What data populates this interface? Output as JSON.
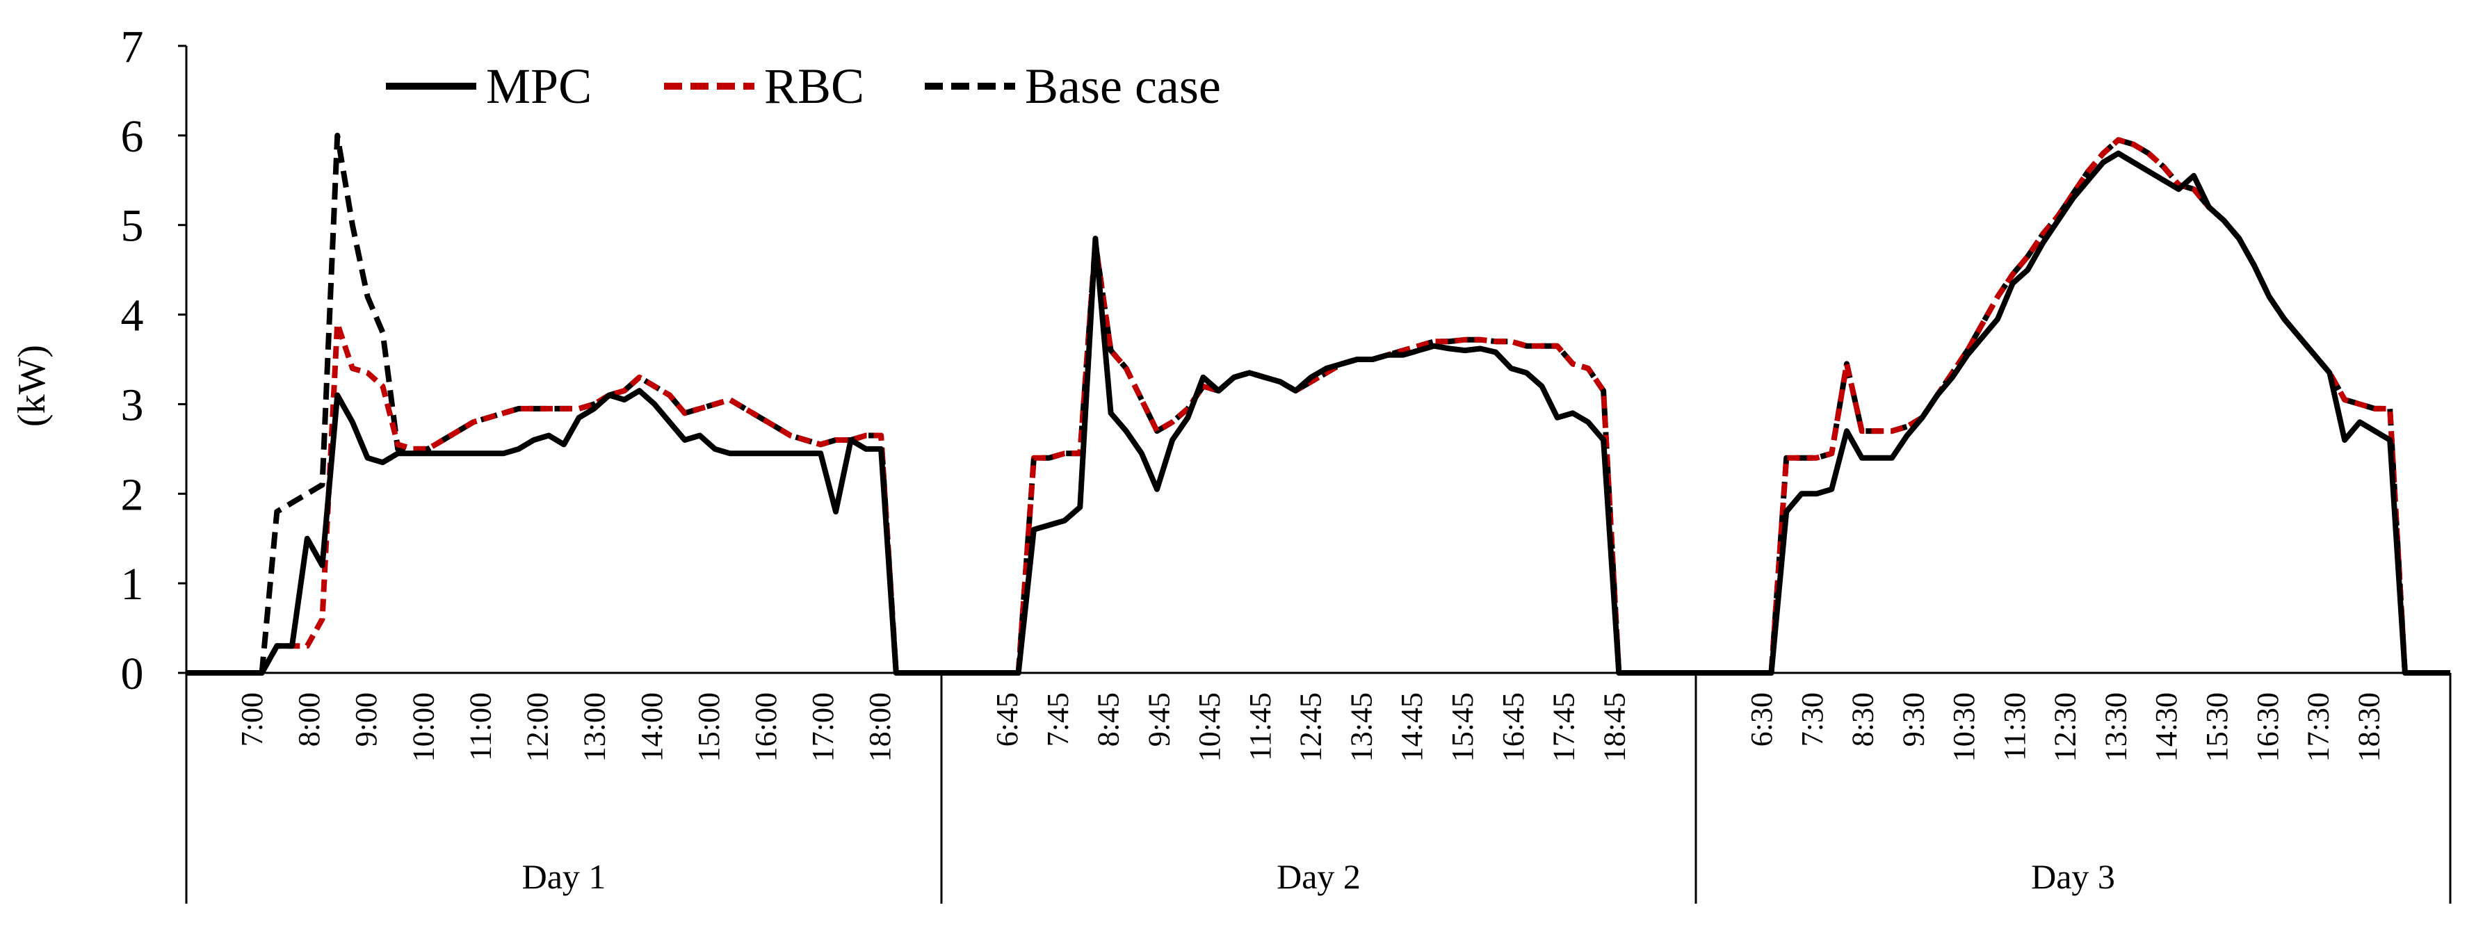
{
  "chart_data": {
    "type": "line",
    "title": "",
    "xlabel": "",
    "ylabel": "(kW)",
    "ylim": [
      0,
      7
    ],
    "yticks": [
      0,
      1,
      2,
      3,
      4,
      5,
      6,
      7
    ],
    "grid": false,
    "legend_position": "top-left",
    "groups": [
      {
        "label": "Day 1",
        "ticks": [
          "7:00",
          "8:00",
          "9:00",
          "10:00",
          "11:00",
          "12:00",
          "13:00",
          "14:00",
          "15:00",
          "16:00",
          "17:00",
          "18:00"
        ]
      },
      {
        "label": "Day 2",
        "ticks": [
          "6:45",
          "7:45",
          "8:45",
          "9:45",
          "10:45",
          "11:45",
          "12:45",
          "13:45",
          "14:45",
          "15:45",
          "16:45",
          "17:45",
          "18:45"
        ]
      },
      {
        "label": "Day 3",
        "ticks": [
          "6:30",
          "7:30",
          "8:30",
          "9:30",
          "10:30",
          "11:30",
          "12:30",
          "13:30",
          "14:30",
          "15:30",
          "16:30",
          "17:30",
          "18:30"
        ]
      }
    ],
    "series": [
      {
        "name": "MPC",
        "color": "#000000",
        "style": "solid",
        "days": [
          [
            0,
            0,
            0,
            0,
            0,
            0,
            0.3,
            0.3,
            1.5,
            1.2,
            3.1,
            2.8,
            2.4,
            2.35,
            2.45,
            2.45,
            2.45,
            2.45,
            2.45,
            2.45,
            2.45,
            2.45,
            2.5,
            2.6,
            2.65,
            2.55,
            2.85,
            2.95,
            3.1,
            3.05,
            3.15,
            3.0,
            2.8,
            2.6,
            2.65,
            2.5,
            2.45,
            2.45,
            2.45,
            2.45,
            2.45,
            2.45,
            2.45,
            1.8,
            2.6,
            2.5,
            2.5,
            0,
            0,
            0,
            0
          ],
          [
            0,
            0,
            0,
            0,
            0,
            0,
            1.6,
            1.65,
            1.7,
            1.85,
            4.85,
            2.9,
            2.7,
            2.45,
            2.05,
            2.6,
            2.85,
            3.3,
            3.15,
            3.3,
            3.35,
            3.3,
            3.25,
            3.15,
            3.3,
            3.4,
            3.45,
            3.5,
            3.5,
            3.55,
            3.55,
            3.6,
            3.65,
            3.62,
            3.6,
            3.62,
            3.58,
            3.4,
            3.35,
            3.2,
            2.85,
            2.9,
            2.8,
            2.6,
            0,
            0,
            0,
            0,
            0,
            0
          ],
          [
            0,
            0,
            0,
            0,
            0,
            0,
            1.8,
            2.0,
            2.0,
            2.05,
            2.7,
            2.4,
            2.4,
            2.4,
            2.65,
            2.85,
            3.1,
            3.3,
            3.55,
            3.75,
            3.95,
            4.35,
            4.5,
            4.8,
            5.05,
            5.3,
            5.5,
            5.7,
            5.8,
            5.7,
            5.6,
            5.5,
            5.4,
            5.55,
            5.2,
            5.05,
            4.85,
            4.55,
            4.2,
            3.95,
            3.75,
            3.55,
            3.35,
            2.6,
            2.8,
            2.7,
            2.6,
            0,
            0,
            0,
            0
          ]
        ]
      },
      {
        "name": "RBC",
        "color": "#C00000",
        "style": "dashed",
        "days": [
          [
            0,
            0,
            0,
            0,
            0,
            0,
            0.3,
            0.3,
            0.3,
            0.6,
            3.9,
            3.4,
            3.35,
            3.2,
            2.55,
            2.5,
            2.5,
            2.6,
            2.7,
            2.8,
            2.85,
            2.9,
            2.95,
            2.95,
            2.95,
            2.95,
            2.95,
            3.0,
            3.1,
            3.15,
            3.3,
            3.2,
            3.1,
            2.9,
            2.95,
            3.0,
            3.05,
            2.95,
            2.85,
            2.75,
            2.65,
            2.6,
            2.55,
            2.6,
            2.6,
            2.65,
            2.65,
            0,
            0,
            0,
            0
          ],
          [
            0,
            0,
            0,
            0,
            0,
            0,
            2.4,
            2.4,
            2.45,
            2.45,
            4.8,
            3.6,
            3.4,
            3.05,
            2.7,
            2.8,
            2.95,
            3.2,
            3.15,
            3.3,
            3.35,
            3.3,
            3.25,
            3.15,
            3.25,
            3.35,
            3.45,
            3.5,
            3.5,
            3.55,
            3.6,
            3.65,
            3.7,
            3.7,
            3.72,
            3.72,
            3.7,
            3.7,
            3.65,
            3.65,
            3.65,
            3.45,
            3.4,
            3.15,
            0,
            0,
            0,
            0,
            0,
            0
          ],
          [
            0,
            0,
            0,
            0,
            0,
            0,
            2.4,
            2.4,
            2.4,
            2.45,
            3.45,
            2.7,
            2.7,
            2.7,
            2.75,
            2.85,
            3.1,
            3.35,
            3.6,
            3.9,
            4.2,
            4.45,
            4.65,
            4.9,
            5.1,
            5.35,
            5.6,
            5.8,
            5.95,
            5.9,
            5.8,
            5.65,
            5.45,
            5.4,
            5.2,
            5.05,
            4.85,
            4.55,
            4.2,
            3.95,
            3.75,
            3.55,
            3.35,
            3.05,
            3.0,
            2.95,
            2.95,
            0,
            0,
            0,
            0
          ]
        ]
      },
      {
        "name": "Base case",
        "color": "#000000",
        "style": "dashed",
        "days": [
          [
            0,
            0,
            0,
            0,
            0,
            0,
            1.8,
            1.9,
            2.0,
            2.1,
            6.0,
            5.0,
            4.2,
            3.8,
            2.5,
            2.5,
            2.5,
            2.6,
            2.7,
            2.8,
            2.85,
            2.9,
            2.95,
            2.95,
            2.95,
            2.95,
            2.95,
            3.0,
            3.1,
            3.15,
            3.3,
            3.2,
            3.1,
            2.9,
            2.95,
            3.0,
            3.05,
            2.95,
            2.85,
            2.75,
            2.65,
            2.6,
            2.55,
            2.6,
            2.6,
            2.65,
            2.65,
            0,
            0,
            0,
            0
          ],
          [
            0,
            0,
            0,
            0,
            0,
            0,
            2.4,
            2.4,
            2.45,
            2.45,
            4.8,
            3.6,
            3.4,
            3.05,
            2.7,
            2.8,
            2.95,
            3.2,
            3.15,
            3.3,
            3.35,
            3.3,
            3.25,
            3.15,
            3.25,
            3.35,
            3.45,
            3.5,
            3.5,
            3.55,
            3.6,
            3.65,
            3.7,
            3.7,
            3.72,
            3.72,
            3.7,
            3.7,
            3.65,
            3.65,
            3.65,
            3.45,
            3.4,
            3.15,
            0,
            0,
            0,
            0,
            0,
            0
          ],
          [
            0,
            0,
            0,
            0,
            0,
            0,
            2.4,
            2.4,
            2.4,
            2.45,
            3.45,
            2.7,
            2.7,
            2.7,
            2.75,
            2.85,
            3.1,
            3.35,
            3.6,
            3.9,
            4.2,
            4.45,
            4.65,
            4.9,
            5.1,
            5.35,
            5.6,
            5.8,
            5.95,
            5.9,
            5.8,
            5.65,
            5.45,
            5.4,
            5.2,
            5.05,
            4.85,
            4.55,
            4.2,
            3.95,
            3.75,
            3.55,
            3.35,
            3.05,
            3.0,
            2.95,
            2.95,
            0,
            0,
            0,
            0
          ]
        ]
      }
    ]
  }
}
